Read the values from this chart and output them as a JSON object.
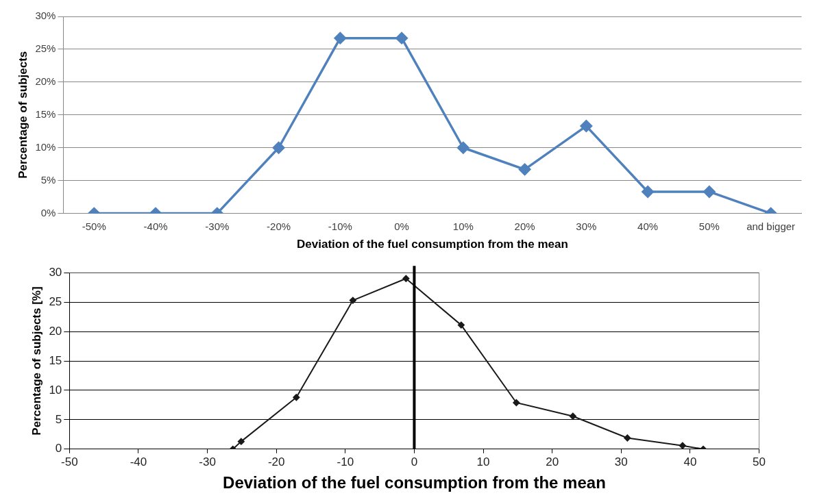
{
  "chart_data": [
    {
      "type": "line",
      "xlabel": "Deviation of the fuel consumption from the mean",
      "ylabel": "Percentage of subjects",
      "categories": [
        "-50%",
        "-40%",
        "-30%",
        "-20%",
        "-10%",
        "0%",
        "10%",
        "20%",
        "30%",
        "40%",
        "50%",
        "and bigger"
      ],
      "series": [
        {
          "color": "#4f81bd",
          "values": [
            0,
            0,
            0,
            10,
            26.7,
            26.7,
            10,
            6.7,
            13.3,
            3.3,
            3.3,
            0
          ]
        }
      ],
      "ylim": [
        0,
        30
      ],
      "yticks": [
        {
          "value": 0,
          "label": "0%"
        },
        {
          "value": 5,
          "label": "5%"
        },
        {
          "value": 10,
          "label": "10%"
        },
        {
          "value": 15,
          "label": "15%"
        },
        {
          "value": 20,
          "label": "20%"
        },
        {
          "value": 25,
          "label": "25%"
        },
        {
          "value": 30,
          "label": "30%"
        }
      ],
      "grid": "y",
      "legend": false,
      "marker": "diamond",
      "line_style": "solid"
    },
    {
      "type": "line",
      "xlabel": "Deviation of the fuel consumption from the mean",
      "ylabel": "Percentage of subjects [%]",
      "series": [
        {
          "color": "#1a1a1a",
          "x": [
            -26.3,
            -25.1,
            -17.1,
            -8.9,
            -1.2,
            6.8,
            14.8,
            23.0,
            30.9,
            38.9,
            41.9
          ],
          "values": [
            0,
            1.3,
            8.8,
            25.3,
            29.0,
            21.1,
            7.9,
            5.6,
            1.9,
            0.6,
            0
          ]
        }
      ],
      "xlim": [
        -50,
        50
      ],
      "xticks": [
        -50,
        -40,
        -30,
        -20,
        -10,
        0,
        10,
        20,
        30,
        40,
        50
      ],
      "ylim": [
        0,
        30
      ],
      "yticks": [
        0,
        5,
        10,
        15,
        20,
        25,
        30
      ],
      "ref_lines": [
        {
          "axis": "x",
          "value": 0,
          "color": "#000000"
        }
      ],
      "grid": "y",
      "legend": false,
      "marker": "diamond",
      "line_style": "solid"
    }
  ]
}
